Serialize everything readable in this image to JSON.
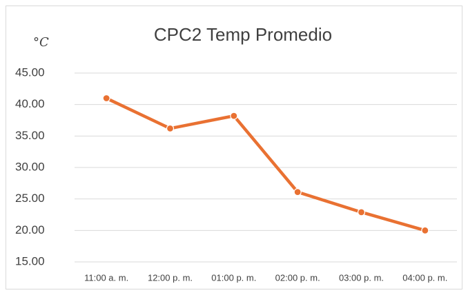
{
  "chart_data": {
    "type": "line",
    "title": "CPC2 Temp Promedio",
    "y_label": "°C",
    "categories": [
      "11:00 a. m.",
      "12:00 p. m.",
      "01:00 p. m.",
      "02:00 p. m.",
      "03:00 p. m.",
      "04:00 p. m."
    ],
    "series": [
      {
        "name": "CPC2 Temp Promedio",
        "color": "#e97132",
        "values": [
          41.0,
          36.2,
          38.2,
          26.1,
          22.9,
          20.0
        ]
      }
    ],
    "ylim": [
      15,
      45
    ],
    "yticks": [
      {
        "value": 15,
        "label": "15.00"
      },
      {
        "value": 20,
        "label": "20.00"
      },
      {
        "value": 25,
        "label": "25.00"
      },
      {
        "value": 30,
        "label": "30.00"
      },
      {
        "value": 35,
        "label": "35.00"
      },
      {
        "value": 40,
        "label": "40.00"
      },
      {
        "value": 45,
        "label": "45.00"
      }
    ],
    "grid": true
  }
}
